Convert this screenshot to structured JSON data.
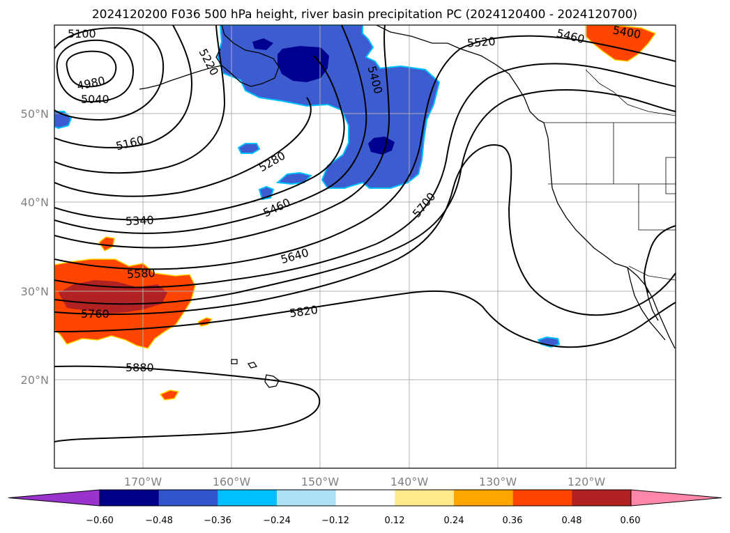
{
  "title": "2024120200 F036 500 hPa height, river basin precipitation PC (2024120400 - 2024120700)",
  "lon_ticks": [
    "170°W",
    "160°W",
    "150°W",
    "140°W",
    "130°W",
    "120°W"
  ],
  "lat_ticks": [
    "50°N",
    "40°N",
    "30°N",
    "20°N"
  ],
  "colorbar": {
    "ticks": [
      "−0.60",
      "−0.48",
      "−0.36",
      "−0.24",
      "−0.12",
      "0.12",
      "0.24",
      "0.36",
      "0.48",
      "0.60"
    ],
    "colors": [
      "#9933cc",
      "#00008b",
      "#3355cc",
      "#00bfff",
      "#aee0f8",
      "#ffffff",
      "#ffe98a",
      "#ffa500",
      "#ff4500",
      "#b22222",
      "#ff88aa"
    ]
  },
  "contour_labels": [
    {
      "text": "5100"
    },
    {
      "text": "4980"
    },
    {
      "text": "5040"
    },
    {
      "text": "5220"
    },
    {
      "text": "5160"
    },
    {
      "text": "5280"
    },
    {
      "text": "5340"
    },
    {
      "text": "5460"
    },
    {
      "text": "5400"
    },
    {
      "text": "5520"
    },
    {
      "text": "5460"
    },
    {
      "text": "5400"
    },
    {
      "text": "5580"
    },
    {
      "text": "5640"
    },
    {
      "text": "5700"
    },
    {
      "text": "5760"
    },
    {
      "text": "5820"
    },
    {
      "text": "5880"
    }
  ]
}
